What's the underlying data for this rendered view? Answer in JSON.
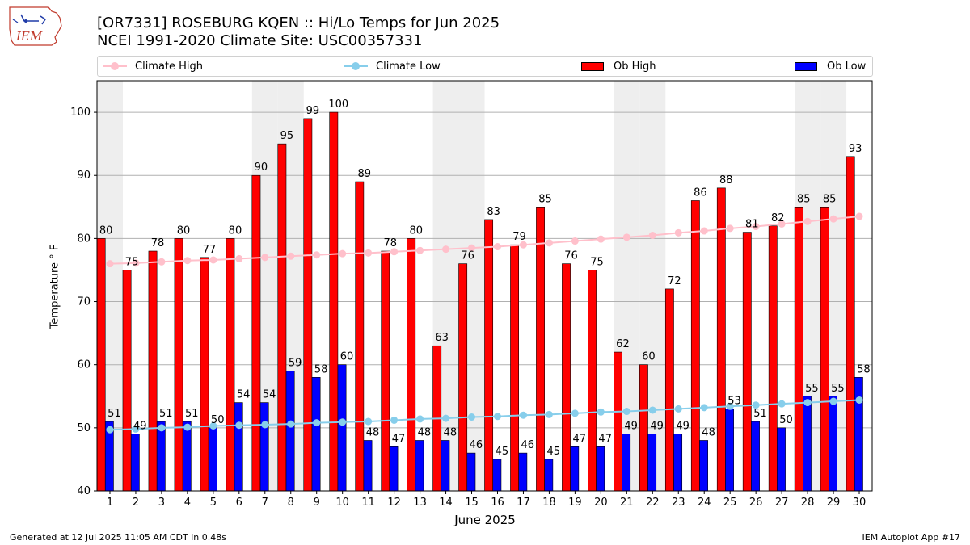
{
  "header": {
    "title_line1": "[OR7331] ROSEBURG KQEN :: Hi/Lo Temps for Jun 2025",
    "title_line2": "NCEI 1991-2020 Climate Site: USC00357331",
    "logo_text": "IEM"
  },
  "legend": {
    "climate_high": "Climate High",
    "climate_low": "Climate Low",
    "ob_high": "Ob High",
    "ob_low": "Ob Low"
  },
  "colors": {
    "ob_high": "#ff0000",
    "ob_low": "#0000ff",
    "climate_high": "#ffc0cb",
    "climate_low": "#87ceeb",
    "weekend_shade": "#eeeeee"
  },
  "footer": {
    "left": "Generated at 12 Jul 2025 11:05 AM CDT in 0.48s",
    "right": "IEM Autoplot App #17"
  },
  "chart_data": {
    "type": "bar",
    "title": "[OR7331] ROSEBURG KQEN :: Hi/Lo Temps for Jun 2025",
    "subtitle": "NCEI 1991-2020 Climate Site: USC00357331",
    "xlabel": "June 2025",
    "ylabel": "Temperature ° F",
    "x": [
      1,
      2,
      3,
      4,
      5,
      6,
      7,
      8,
      9,
      10,
      11,
      12,
      13,
      14,
      15,
      16,
      17,
      18,
      19,
      20,
      21,
      22,
      23,
      24,
      25,
      26,
      27,
      28,
      29,
      30
    ],
    "ylim": [
      40,
      105
    ],
    "yticks": [
      40,
      50,
      60,
      70,
      80,
      90,
      100
    ],
    "grid": "horizontal",
    "legend_position": "top",
    "weekend_days": [
      1,
      7,
      8,
      14,
      15,
      21,
      22,
      28,
      29
    ],
    "series": [
      {
        "name": "Ob High",
        "kind": "bar",
        "values": [
          80,
          75,
          78,
          80,
          77,
          80,
          90,
          95,
          99,
          100,
          89,
          78,
          80,
          63,
          76,
          83,
          79,
          85,
          76,
          75,
          62,
          60,
          72,
          86,
          88,
          81,
          82,
          85,
          85,
          93
        ]
      },
      {
        "name": "Ob Low",
        "kind": "bar",
        "values": [
          51,
          49,
          51,
          51,
          50,
          54,
          54,
          59,
          58,
          60,
          48,
          47,
          48,
          48,
          46,
          45,
          46,
          45,
          47,
          47,
          49,
          49,
          49,
          48,
          53,
          51,
          50,
          55,
          55,
          58
        ]
      },
      {
        "name": "Climate High",
        "kind": "line",
        "values": [
          76.0,
          76.1,
          76.3,
          76.5,
          76.6,
          76.8,
          77.0,
          77.2,
          77.4,
          77.6,
          77.7,
          77.9,
          78.1,
          78.3,
          78.5,
          78.7,
          79.0,
          79.3,
          79.6,
          79.9,
          80.2,
          80.5,
          80.9,
          81.2,
          81.6,
          81.9,
          82.3,
          82.7,
          83.1,
          83.5
        ]
      },
      {
        "name": "Climate Low",
        "kind": "line",
        "values": [
          49.7,
          49.8,
          50.0,
          50.1,
          50.3,
          50.4,
          50.5,
          50.6,
          50.8,
          50.9,
          51.0,
          51.2,
          51.4,
          51.5,
          51.7,
          51.8,
          52.0,
          52.1,
          52.3,
          52.5,
          52.6,
          52.8,
          53.0,
          53.2,
          53.4,
          53.6,
          53.8,
          54.0,
          54.2,
          54.4
        ]
      }
    ]
  }
}
